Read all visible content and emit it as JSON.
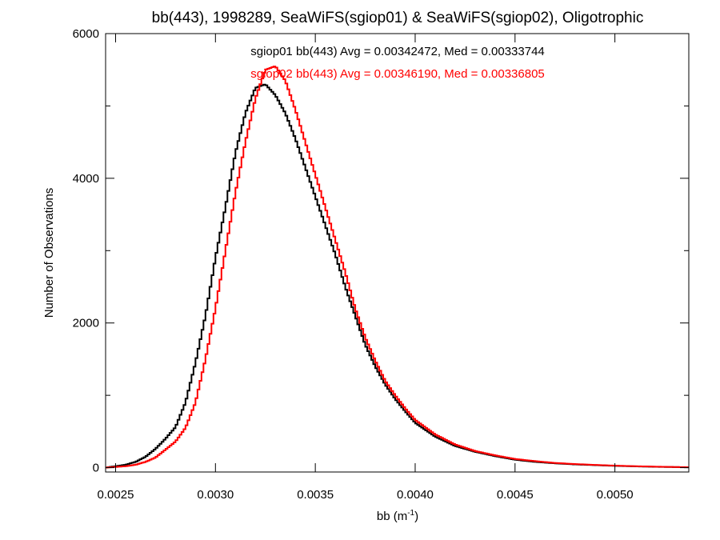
{
  "chart_data": {
    "type": "histogram",
    "title": "bb(443), 1998289, SeaWiFS(sgiop01) & SeaWiFS(sgiop02), Oligotrophic",
    "xlabel_main": "bb (m",
    "xlabel_sup": "-1",
    "xlabel_end": ")",
    "ylabel": "Number of Observations",
    "xlim": [
      0.00245,
      0.00537
    ],
    "ylim": [
      -60,
      6000
    ],
    "xticks": [
      0.0025,
      0.003,
      0.0035,
      0.004,
      0.0045,
      0.005
    ],
    "xtick_labels": [
      "0.0025",
      "0.0030",
      "0.0035",
      "0.0040",
      "0.0045",
      "0.0050"
    ],
    "yticks": [
      0,
      2000,
      4000,
      6000
    ],
    "ytick_labels": [
      "0",
      "2000",
      "4000",
      "6000"
    ],
    "grid": false,
    "annotations": [
      {
        "text": "sgiop01 bb(443) Avg = 0.00342472, Med = 0.00333744",
        "color": "#000000"
      },
      {
        "text": "sgiop02 bb(443) Avg = 0.00346190, Med = 0.00336805",
        "color": "#ff0000"
      }
    ],
    "series": [
      {
        "color": "#000000",
        "points": [
          [
            0.00245,
            0
          ],
          [
            0.0025,
            20
          ],
          [
            0.00255,
            40
          ],
          [
            0.0026,
            80
          ],
          [
            0.00265,
            150
          ],
          [
            0.0027,
            260
          ],
          [
            0.00275,
            400
          ],
          [
            0.0028,
            560
          ],
          [
            0.00285,
            900
          ],
          [
            0.0029,
            1450
          ],
          [
            0.00295,
            2100
          ],
          [
            0.003,
            2900
          ],
          [
            0.00305,
            3600
          ],
          [
            0.0031,
            4350
          ],
          [
            0.00315,
            4900
          ],
          [
            0.0032,
            5250
          ],
          [
            0.00325,
            5300
          ],
          [
            0.0033,
            5150
          ],
          [
            0.00335,
            4900
          ],
          [
            0.0034,
            4550
          ],
          [
            0.00345,
            4150
          ],
          [
            0.0035,
            3750
          ],
          [
            0.00355,
            3350
          ],
          [
            0.0036,
            2950
          ],
          [
            0.00365,
            2500
          ],
          [
            0.0037,
            2100
          ],
          [
            0.00375,
            1700
          ],
          [
            0.0038,
            1400
          ],
          [
            0.00385,
            1150
          ],
          [
            0.0039,
            950
          ],
          [
            0.00395,
            780
          ],
          [
            0.004,
            620
          ],
          [
            0.0041,
            430
          ],
          [
            0.0042,
            300
          ],
          [
            0.0043,
            220
          ],
          [
            0.0044,
            160
          ],
          [
            0.0045,
            110
          ],
          [
            0.0046,
            80
          ],
          [
            0.0047,
            60
          ],
          [
            0.0048,
            45
          ],
          [
            0.0049,
            35
          ],
          [
            0.005,
            25
          ],
          [
            0.0051,
            18
          ],
          [
            0.0052,
            12
          ],
          [
            0.00537,
            5
          ]
        ]
      },
      {
        "color": "#ff0000",
        "points": [
          [
            0.00245,
            0
          ],
          [
            0.0025,
            10
          ],
          [
            0.00255,
            20
          ],
          [
            0.0026,
            40
          ],
          [
            0.00265,
            80
          ],
          [
            0.0027,
            140
          ],
          [
            0.00275,
            250
          ],
          [
            0.0028,
            360
          ],
          [
            0.00285,
            550
          ],
          [
            0.0029,
            900
          ],
          [
            0.00295,
            1500
          ],
          [
            0.003,
            2200
          ],
          [
            0.00305,
            3000
          ],
          [
            0.0031,
            3800
          ],
          [
            0.00315,
            4500
          ],
          [
            0.0032,
            5100
          ],
          [
            0.00325,
            5500
          ],
          [
            0.0033,
            5550
          ],
          [
            0.00335,
            5350
          ],
          [
            0.0034,
            4950
          ],
          [
            0.00345,
            4500
          ],
          [
            0.0035,
            4050
          ],
          [
            0.00355,
            3600
          ],
          [
            0.0036,
            3150
          ],
          [
            0.00365,
            2700
          ],
          [
            0.0037,
            2200
          ],
          [
            0.00375,
            1800
          ],
          [
            0.0038,
            1480
          ],
          [
            0.00385,
            1200
          ],
          [
            0.0039,
            1000
          ],
          [
            0.00395,
            820
          ],
          [
            0.004,
            660
          ],
          [
            0.0041,
            460
          ],
          [
            0.0042,
            320
          ],
          [
            0.0043,
            230
          ],
          [
            0.0044,
            170
          ],
          [
            0.0045,
            120
          ],
          [
            0.0046,
            90
          ],
          [
            0.0047,
            65
          ],
          [
            0.0048,
            50
          ],
          [
            0.0049,
            38
          ],
          [
            0.005,
            28
          ],
          [
            0.0051,
            20
          ],
          [
            0.0052,
            14
          ],
          [
            0.00537,
            6
          ]
        ]
      }
    ]
  }
}
